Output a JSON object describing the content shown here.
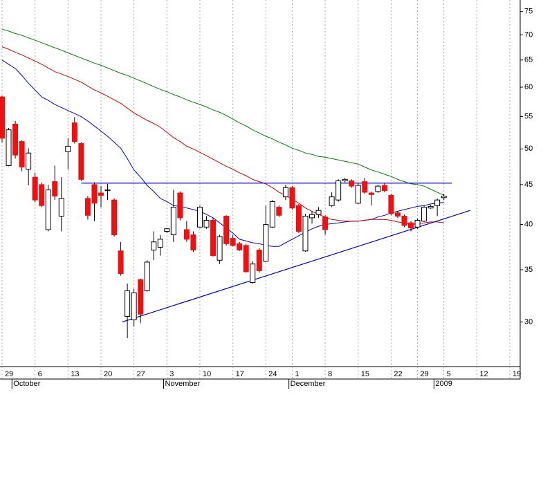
{
  "chart_data": {
    "type": "candlestick",
    "categories": [
      "29",
      null,
      null,
      null,
      null,
      "6",
      null,
      null,
      null,
      null,
      "13",
      null,
      null,
      null,
      null,
      "20",
      null,
      null,
      null,
      null,
      "27",
      null,
      null,
      null,
      null,
      "3",
      null,
      null,
      null,
      null,
      "10",
      null,
      null,
      null,
      null,
      "17",
      null,
      null,
      null,
      null,
      "24",
      null,
      null,
      null,
      "1",
      null,
      null,
      null,
      null,
      "8",
      null,
      null,
      null,
      null,
      "15",
      null,
      null,
      null,
      null,
      "22",
      null,
      null,
      null,
      "29",
      null,
      null,
      null,
      "5",
      null,
      null,
      null,
      null,
      "12",
      null,
      null,
      null,
      null,
      "19"
    ],
    "months": [
      null,
      null,
      "October",
      null,
      null,
      null,
      null,
      null,
      null,
      null,
      null,
      null,
      null,
      null,
      null,
      null,
      null,
      null,
      null,
      null,
      null,
      null,
      null,
      null,
      null,
      "November",
      null,
      null,
      null,
      null,
      null,
      null,
      null,
      null,
      null,
      null,
      null,
      null,
      null,
      null,
      null,
      null,
      null,
      null,
      "December",
      null,
      null,
      null,
      null,
      null,
      null,
      null,
      null,
      null,
      null,
      null,
      null,
      null,
      null,
      null,
      null,
      null,
      null,
      null,
      null,
      null,
      "2009",
      null,
      null,
      null,
      null,
      null,
      null,
      null,
      null,
      null,
      null,
      null
    ],
    "open": [
      58.3,
      47.6,
      53.8,
      51.1,
      47.1,
      46.0,
      45.0,
      39.4,
      45.4,
      41.0,
      49.6,
      54.0,
      50.8,
      43.2,
      45.0,
      43.9,
      44.2,
      43.0,
      37.0,
      30.5,
      30.2,
      34.0,
      32.9,
      37.1,
      37.4,
      39.2,
      38.8,
      43.9,
      39.4,
      38.8,
      39.7,
      39.7,
      40.5,
      36.0,
      41.0,
      38.4,
      37.8,
      37.6,
      33.7,
      37.1,
      35.9,
      39.7,
      42.1,
      43.4,
      44.6,
      42.3,
      37.0,
      40.8,
      41.2,
      40.9,
      42.3,
      43.0,
      45.5,
      45.5,
      42.6,
      45.4,
      43.9,
      44.1,
      44.9,
      43.6,
      41.4,
      41.0,
      40.2,
      39.7,
      40.4,
      42.0,
      42.3,
      43.3,
      null,
      null,
      null,
      null,
      null,
      null,
      null,
      null,
      null,
      null
    ],
    "high": [
      58.5,
      53.2,
      54.3,
      51.3,
      50.1,
      46.6,
      45.3,
      45.0,
      47.6,
      46.0,
      51.6,
      54.9,
      51.0,
      43.5,
      45.3,
      44.8,
      45.1,
      43.2,
      38.0,
      33.6,
      33.1,
      34.1,
      36.0,
      39.2,
      38.8,
      39.6,
      44.3,
      44.1,
      40.4,
      39.2,
      42.3,
      41.0,
      40.8,
      38.8,
      41.1,
      38.8,
      38.0,
      37.8,
      35.9,
      37.3,
      42.3,
      43.0,
      42.3,
      45.0,
      44.8,
      42.5,
      41.3,
      41.6,
      42.1,
      41.1,
      44.0,
      45.7,
      45.9,
      45.7,
      45.2,
      45.9,
      44.1,
      45.0,
      45.2,
      43.8,
      41.6,
      41.2,
      40.4,
      40.7,
      42.3,
      42.4,
      43.2,
      43.8,
      null,
      null,
      null,
      null,
      null,
      null,
      null,
      null,
      null,
      null
    ],
    "low": [
      51.0,
      47.5,
      48.6,
      46.8,
      44.9,
      42.7,
      42.1,
      39.2,
      43.0,
      39.2,
      47.1,
      50.8,
      45.5,
      40.6,
      40.4,
      42.1,
      43.0,
      38.6,
      34.4,
      28.6,
      29.6,
      29.9,
      32.8,
      36.0,
      36.5,
      39.0,
      38.0,
      40.5,
      38.0,
      36.9,
      39.6,
      39.5,
      36.4,
      35.6,
      37.6,
      37.5,
      37.0,
      34.7,
      33.6,
      34.7,
      35.8,
      39.6,
      40.9,
      43.0,
      41.8,
      39.0,
      36.9,
      40.1,
      40.8,
      38.8,
      42.1,
      42.8,
      45.3,
      44.6,
      42.5,
      43.8,
      42.3,
      43.9,
      44.0,
      41.1,
      40.8,
      39.7,
      39.2,
      39.5,
      40.3,
      41.9,
      41.0,
      43.0,
      null,
      null,
      null,
      null,
      null,
      null,
      null,
      null,
      null,
      null
    ],
    "close": [
      51.6,
      52.9,
      49.1,
      47.4,
      49.4,
      43.0,
      42.3,
      44.3,
      43.5,
      43.2,
      50.4,
      51.1,
      45.7,
      41.1,
      42.6,
      43.6,
      44.3,
      38.8,
      34.6,
      32.9,
      32.7,
      30.7,
      35.8,
      38.0,
      38.3,
      39.5,
      42.1,
      40.8,
      38.3,
      37.1,
      42.1,
      40.5,
      36.5,
      38.6,
      37.8,
      37.6,
      37.1,
      34.8,
      35.6,
      34.9,
      40.0,
      42.8,
      41.1,
      44.6,
      42.0,
      39.2,
      41.0,
      41.2,
      41.7,
      39.4,
      43.4,
      45.5,
      45.7,
      44.8,
      44.9,
      44.0,
      43.7,
      44.8,
      44.2,
      41.3,
      41.0,
      39.9,
      39.6,
      40.5,
      42.1,
      42.2,
      43.0,
      43.5,
      null,
      null,
      null,
      null,
      null,
      null,
      null,
      null,
      null,
      null
    ],
    "up_color": "#ffffff",
    "down_color": "#ee1111",
    "series": [
      {
        "color": "#0000cc",
        "values": [
          65.0,
          64.2,
          63.4,
          62.1,
          60.7,
          59.5,
          58.3,
          57.7,
          57.0,
          56.5,
          56.0,
          55.5,
          55.0,
          54.3,
          53.5,
          52.7,
          51.9,
          51.0,
          50.1,
          48.6,
          47.0,
          46.0,
          44.9,
          44.1,
          43.2,
          42.8,
          42.3,
          42.2,
          42.0,
          41.8,
          41.6,
          41.2,
          40.8,
          40.2,
          39.6,
          39.0,
          38.3,
          38.1,
          37.9,
          37.8,
          37.6,
          37.5,
          37.5,
          37.9,
          38.3,
          38.7,
          39.1,
          39.5,
          39.8,
          40.0,
          40.1,
          40.2,
          40.3,
          40.4,
          40.4,
          40.5,
          40.6,
          40.9,
          41.1,
          41.4,
          41.6,
          41.8,
          42.0,
          42.2,
          42.3,
          42.5,
          42.6,
          42.7,
          null,
          null,
          null,
          null,
          null,
          null,
          null,
          null,
          null,
          null
        ]
      },
      {
        "color": "#cc0000",
        "values": [
          67.6,
          67.1,
          66.5,
          66.0,
          65.4,
          64.8,
          64.2,
          63.5,
          62.8,
          62.4,
          61.9,
          61.4,
          60.9,
          60.2,
          59.5,
          59.0,
          58.4,
          57.8,
          57.2,
          56.4,
          55.6,
          55.0,
          54.4,
          53.9,
          53.3,
          52.5,
          51.7,
          51.1,
          50.4,
          50.0,
          49.5,
          49.0,
          48.5,
          48.0,
          47.5,
          47.1,
          46.6,
          46.2,
          45.7,
          45.4,
          45.1,
          44.6,
          44.0,
          43.6,
          43.1,
          42.6,
          42.0,
          41.6,
          41.2,
          40.9,
          40.6,
          40.5,
          40.4,
          40.4,
          40.4,
          40.5,
          40.6,
          40.6,
          40.6,
          40.5,
          40.3,
          40.2,
          40.0,
          40.1,
          40.2,
          40.3,
          40.3,
          40.2,
          null,
          null,
          null,
          null,
          null,
          null,
          null,
          null,
          null,
          null
        ]
      },
      {
        "color": "#008000",
        "values": [
          71.2,
          70.8,
          70.3,
          69.9,
          69.4,
          68.9,
          68.4,
          67.9,
          67.4,
          66.9,
          66.4,
          65.9,
          65.4,
          64.9,
          64.4,
          64.0,
          63.5,
          63.0,
          62.5,
          62.1,
          61.6,
          61.1,
          60.6,
          60.1,
          59.6,
          59.2,
          58.7,
          58.3,
          57.8,
          57.4,
          57.0,
          56.6,
          56.1,
          55.7,
          55.2,
          54.6,
          54.0,
          53.5,
          52.9,
          52.4,
          51.9,
          51.5,
          51.0,
          50.6,
          50.1,
          49.8,
          49.4,
          49.2,
          48.9,
          48.8,
          48.6,
          48.4,
          48.2,
          48.0,
          47.8,
          47.4,
          47.0,
          46.7,
          46.4,
          46.1,
          45.7,
          45.4,
          45.1,
          45.0,
          44.8,
          44.4,
          44.0,
          43.6,
          null,
          null,
          null,
          null,
          null,
          null,
          null,
          null,
          null,
          null
        ]
      }
    ],
    "trendlines": [
      {
        "color": "#0000cc",
        "start": 12,
        "end": 68.2,
        "values": [
          45.2,
          45.2
        ]
      },
      {
        "color": "#0000cc",
        "start": 18.2,
        "end": 71,
        "values": [
          30.0,
          41.7
        ]
      }
    ],
    "yscale": "log",
    "ylim": [
      26.3,
      77.6
    ],
    "yticks": [
      30,
      35,
      40,
      45,
      50,
      55,
      60,
      65,
      70,
      75
    ],
    "grid": true
  }
}
